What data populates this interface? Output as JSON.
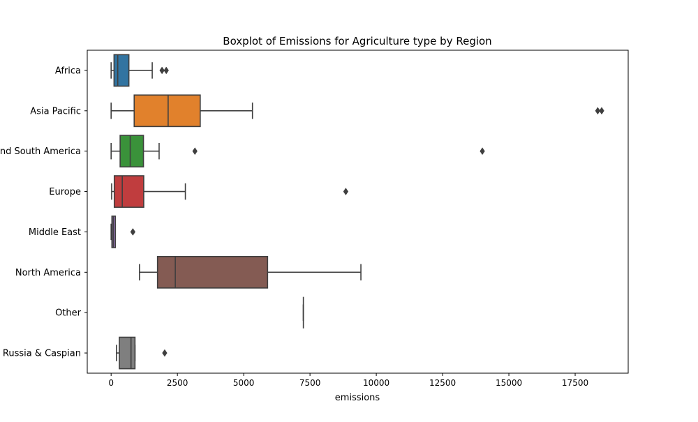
{
  "chart_data": {
    "type": "boxplot",
    "title": "Boxplot of Emissions for Agriculture type by Region",
    "xlabel": "emissions",
    "ylabel": "",
    "orientation": "horizontal",
    "xlim": [
      -900,
      19500
    ],
    "xticks": [
      0,
      2500,
      5000,
      7500,
      10000,
      12500,
      15000,
      17500
    ],
    "xtick_labels": [
      "0",
      "2500",
      "5000",
      "7500",
      "10000",
      "12500",
      "15000",
      "17500"
    ],
    "grid": false,
    "categories": [
      "Africa",
      "Asia Pacific",
      "Central and South America",
      "Europe",
      "Middle East",
      "North America",
      "Other",
      "Russia & Caspian"
    ],
    "boxes": [
      {
        "category": "Africa",
        "color": "#3274a1",
        "whisker_low": 0,
        "q1": 110,
        "median": 250,
        "q3": 670,
        "whisker_high": 1550,
        "outliers": [
          1920,
          2080
        ]
      },
      {
        "category": "Asia Pacific",
        "color": "#e1812c",
        "whisker_low": 0,
        "q1": 870,
        "median": 2150,
        "q3": 3360,
        "whisker_high": 5330,
        "outliers": [
          18350,
          18500
        ]
      },
      {
        "category": "Central and South America",
        "color": "#3a923a",
        "whisker_low": 0,
        "q1": 340,
        "median": 720,
        "q3": 1220,
        "whisker_high": 1810,
        "outliers": [
          3160,
          14000
        ]
      },
      {
        "category": "Europe",
        "color": "#c03d3e",
        "whisker_low": 20,
        "q1": 120,
        "median": 420,
        "q3": 1230,
        "whisker_high": 2800,
        "outliers": [
          8850
        ]
      },
      {
        "category": "Middle East",
        "color": "#9372b2",
        "whisker_low": 0,
        "q1": 30,
        "median": 80,
        "q3": 160,
        "whisker_high": 160,
        "outliers": [
          820
        ]
      },
      {
        "category": "North America",
        "color": "#845b53",
        "whisker_low": 1070,
        "q1": 1750,
        "median": 2420,
        "q3": 5900,
        "whisker_high": 9420,
        "outliers": []
      },
      {
        "category": "Other",
        "color": "#d684bd",
        "whisker_low": 7250,
        "q1": 7250,
        "median": 7250,
        "q3": 7250,
        "whisker_high": 7250,
        "outliers": []
      },
      {
        "category": "Russia & Caspian",
        "color": "#7f7f7f",
        "whisker_low": 200,
        "q1": 310,
        "median": 750,
        "q3": 900,
        "whisker_high": 900,
        "outliers": [
          2020
        ]
      }
    ]
  }
}
